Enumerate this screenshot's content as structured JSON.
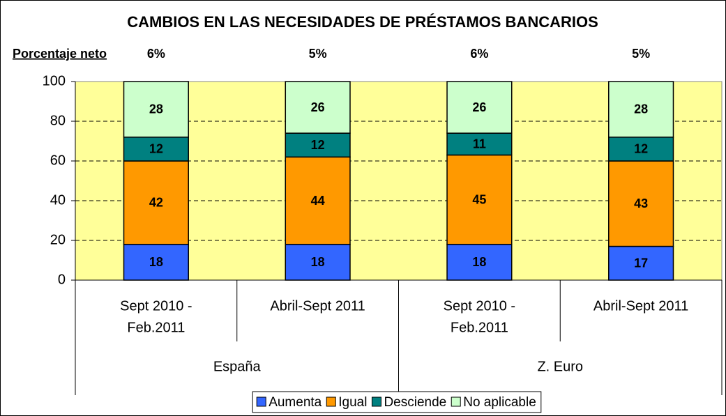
{
  "chart_data": {
    "type": "stacked_bar",
    "title": "CAMBIOS EN LAS NECESIDADES DE PRÉSTAMOS BANCARIOS",
    "net_label": "Porcentaje neto",
    "net_values": [
      "6%",
      "5%",
      "6%",
      "5%"
    ],
    "categories": [
      [
        "Sept 2010 -",
        "Feb.2011"
      ],
      [
        "Abril-Sept 2011"
      ],
      [
        "Sept 2010 -",
        "Feb.2011"
      ],
      [
        "Abril-Sept 2011"
      ]
    ],
    "groups": [
      "España",
      "Z. Euro"
    ],
    "series": [
      {
        "name": "Aumenta",
        "color": "#3366ff",
        "values": [
          18,
          18,
          18,
          17
        ]
      },
      {
        "name": "Igual",
        "color": "#ff9900",
        "values": [
          42,
          44,
          45,
          43
        ]
      },
      {
        "name": "Desciende",
        "color": "#008080",
        "values": [
          12,
          12,
          11,
          12
        ]
      },
      {
        "name": "No aplicable",
        "color": "#ccffcc",
        "values": [
          28,
          26,
          26,
          28
        ]
      }
    ],
    "ylim": [
      0,
      100
    ],
    "yticks": [
      0,
      20,
      40,
      60,
      80,
      100
    ],
    "grid": true,
    "plot_background": "#ffff99"
  }
}
